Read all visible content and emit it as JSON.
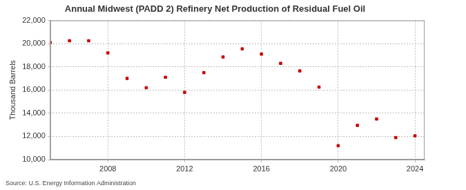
{
  "chart_data": {
    "type": "scatter",
    "title": "Annual Midwest (PADD 2) Refinery Net Production of Residual Fuel Oil",
    "y_label": "Thousand Barrels",
    "source": "Source: U.S. Energy Information Administration",
    "x": [
      2005,
      2006,
      2007,
      2008,
      2009,
      2010,
      2011,
      2012,
      2013,
      2014,
      2015,
      2016,
      2017,
      2018,
      2019,
      2020,
      2021,
      2022,
      2023,
      2024
    ],
    "values": [
      20100,
      20250,
      20250,
      19200,
      17000,
      16200,
      17100,
      15800,
      17500,
      18850,
      19550,
      19100,
      18300,
      17650,
      16250,
      11200,
      12950,
      13500,
      11900,
      12050
    ],
    "color": "#cc0000",
    "marker": "square",
    "xlim": [
      2005,
      2024.5
    ],
    "xticks": [
      2008,
      2012,
      2016,
      2020,
      2024
    ],
    "ylim": [
      10000,
      22000
    ],
    "yticks": [
      {
        "value": 10000,
        "label": "10,000"
      },
      {
        "value": 12000,
        "label": "12,000"
      },
      {
        "value": 14000,
        "label": "14,000"
      },
      {
        "value": 16000,
        "label": "16,000"
      },
      {
        "value": 18000,
        "label": "18,000"
      },
      {
        "value": 20000,
        "label": "20,000"
      },
      {
        "value": 22000,
        "label": "22,000"
      }
    ],
    "grid": true
  }
}
